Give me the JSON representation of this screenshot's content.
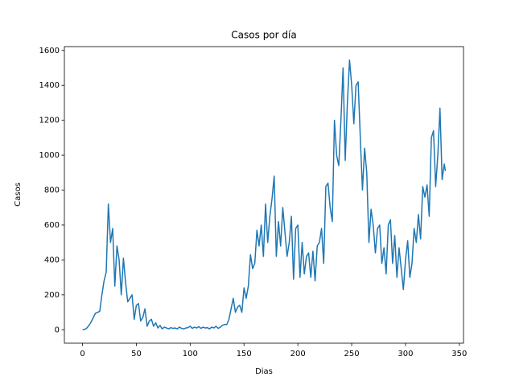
{
  "chart_data": {
    "type": "line",
    "title": "Casos por día",
    "xlabel": "Dias",
    "ylabel": "Casos",
    "color": "#1f77b4",
    "x": [
      0,
      2,
      4,
      6,
      8,
      10,
      12,
      14,
      16,
      18,
      20,
      22,
      24,
      26,
      28,
      30,
      32,
      34,
      36,
      38,
      40,
      42,
      44,
      46,
      48,
      50,
      52,
      54,
      56,
      58,
      60,
      62,
      64,
      66,
      68,
      70,
      72,
      74,
      76,
      78,
      80,
      82,
      84,
      86,
      88,
      90,
      92,
      94,
      96,
      98,
      100,
      102,
      104,
      106,
      108,
      110,
      112,
      114,
      116,
      118,
      120,
      122,
      124,
      126,
      128,
      130,
      132,
      134,
      136,
      138,
      140,
      142,
      144,
      146,
      148,
      150,
      152,
      154,
      156,
      158,
      160,
      162,
      164,
      166,
      168,
      170,
      172,
      174,
      176,
      178,
      180,
      182,
      184,
      186,
      188,
      190,
      192,
      194,
      196,
      198,
      200,
      202,
      204,
      206,
      208,
      210,
      212,
      214,
      216,
      218,
      220,
      222,
      224,
      226,
      228,
      230,
      232,
      234,
      236,
      238,
      240,
      242,
      244,
      246,
      248,
      250,
      252,
      254,
      256,
      258,
      260,
      262,
      264,
      266,
      268,
      270,
      272,
      274,
      276,
      278,
      280,
      282,
      284,
      286,
      288,
      290,
      292,
      294,
      296,
      298,
      300,
      302,
      304,
      306,
      308,
      310,
      312,
      314,
      316,
      318,
      320,
      322,
      324,
      326,
      328,
      330,
      332,
      334,
      336,
      337
    ],
    "values": [
      0,
      2,
      10,
      25,
      45,
      70,
      95,
      100,
      105,
      200,
      280,
      330,
      720,
      500,
      580,
      250,
      480,
      400,
      200,
      410,
      270,
      160,
      180,
      200,
      60,
      140,
      150,
      50,
      70,
      120,
      20,
      50,
      60,
      20,
      40,
      10,
      25,
      5,
      15,
      10,
      5,
      12,
      8,
      10,
      5,
      15,
      8,
      5,
      10,
      12,
      20,
      8,
      15,
      10,
      18,
      8,
      15,
      10,
      12,
      5,
      15,
      10,
      20,
      8,
      15,
      25,
      30,
      30,
      60,
      120,
      180,
      100,
      130,
      140,
      100,
      240,
      180,
      250,
      430,
      350,
      380,
      570,
      480,
      600,
      420,
      720,
      500,
      650,
      750,
      880,
      420,
      620,
      480,
      700,
      560,
      420,
      500,
      650,
      290,
      580,
      600,
      300,
      500,
      320,
      420,
      440,
      300,
      450,
      280,
      480,
      500,
      580,
      380,
      820,
      840,
      700,
      620,
      1200,
      1000,
      940,
      1200,
      1500,
      970,
      1300,
      1545,
      1400,
      1180,
      1400,
      1420,
      1100,
      800,
      1040,
      900,
      500,
      690,
      600,
      440,
      580,
      600,
      380,
      470,
      320,
      600,
      630,
      380,
      540,
      300,
      470,
      350,
      230,
      400,
      510,
      300,
      380,
      580,
      500,
      660,
      520,
      820,
      760,
      830,
      650,
      1100,
      1140,
      820,
      1000,
      1270,
      860,
      950,
      910
    ],
    "xlim": [
      -16.85,
      353.85
    ],
    "ylim": [
      -77,
      1622
    ],
    "xticks": [
      0,
      50,
      100,
      150,
      200,
      250,
      300,
      350
    ],
    "yticks": [
      0,
      200,
      400,
      600,
      800,
      1000,
      1200,
      1400,
      1600
    ]
  }
}
